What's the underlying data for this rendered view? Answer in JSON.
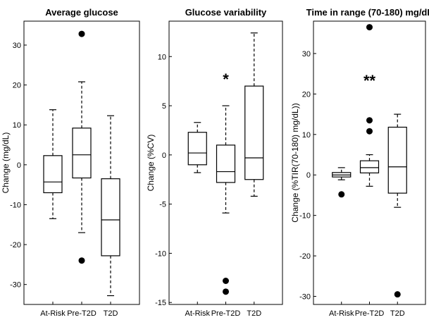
{
  "chart_data": [
    {
      "type": "box",
      "title": "Average glucose",
      "ylabel": "Change (mg/dL)",
      "ylim": [
        -35,
        36
      ],
      "yticks": [
        "30",
        "20",
        "10",
        "0",
        "-10",
        "-20",
        "-30"
      ],
      "categories": [
        "At-Risk",
        "Pre-T2D",
        "T2D"
      ],
      "boxes": [
        {
          "whisker_low": -13.5,
          "q1": -7.0,
          "median": -4.3,
          "q3": 2.3,
          "whisker_high": 13.8,
          "outliers": []
        },
        {
          "whisker_low": -17.0,
          "q1": -3.3,
          "median": 2.5,
          "q3": 9.2,
          "whisker_high": 20.8,
          "outliers": [
            32.8,
            -24.0
          ]
        },
        {
          "whisker_low": -32.8,
          "q1": -22.8,
          "median": -13.8,
          "q3": -3.5,
          "whisker_high": 12.3,
          "outliers": []
        }
      ],
      "annotation": ""
    },
    {
      "type": "box",
      "title": "Glucose variability",
      "ylabel": "Change (%CV)",
      "ylim": [
        -15.2,
        13.6
      ],
      "yticks": [
        "10",
        "5",
        "0",
        "-5",
        "-10",
        "-15"
      ],
      "categories": [
        "At-Risk",
        "Pre-T2D",
        "T2D"
      ],
      "boxes": [
        {
          "whisker_low": -1.8,
          "q1": -1.0,
          "median": 0.2,
          "q3": 2.3,
          "whisker_high": 3.3,
          "outliers": []
        },
        {
          "whisker_low": -5.9,
          "q1": -2.8,
          "median": -1.7,
          "q3": 1.0,
          "whisker_high": 5.0,
          "outliers": [
            -12.8,
            -13.9
          ]
        },
        {
          "whisker_low": -4.2,
          "q1": -2.5,
          "median": -0.3,
          "q3": 7.0,
          "whisker_high": 12.4,
          "outliers": []
        }
      ],
      "annotation": "*"
    },
    {
      "type": "box",
      "title": "Time in range (70-180) mg/dL",
      "ylabel": "Change (%TIR(70-180) mg/dL))",
      "ylim": [
        -32,
        38
      ],
      "yticks": [
        "30",
        "20",
        "10",
        "0",
        "-10",
        "-20",
        "-30"
      ],
      "categories": [
        "At-Risk",
        "Pre-T2D",
        "T2D"
      ],
      "boxes": [
        {
          "whisker_low": -1.2,
          "q1": -0.5,
          "median": 0.0,
          "q3": 0.6,
          "whisker_high": 1.8,
          "outliers": [
            -4.8
          ]
        },
        {
          "whisker_low": -2.8,
          "q1": 0.5,
          "median": 1.8,
          "q3": 3.5,
          "whisker_high": 5.0,
          "outliers": [
            36.5,
            13.5,
            10.8
          ]
        },
        {
          "whisker_low": -8.0,
          "q1": -4.5,
          "median": 2.0,
          "q3": 11.8,
          "whisker_high": 15.0,
          "outliers": [
            -29.5
          ]
        }
      ],
      "annotation": "**"
    }
  ]
}
